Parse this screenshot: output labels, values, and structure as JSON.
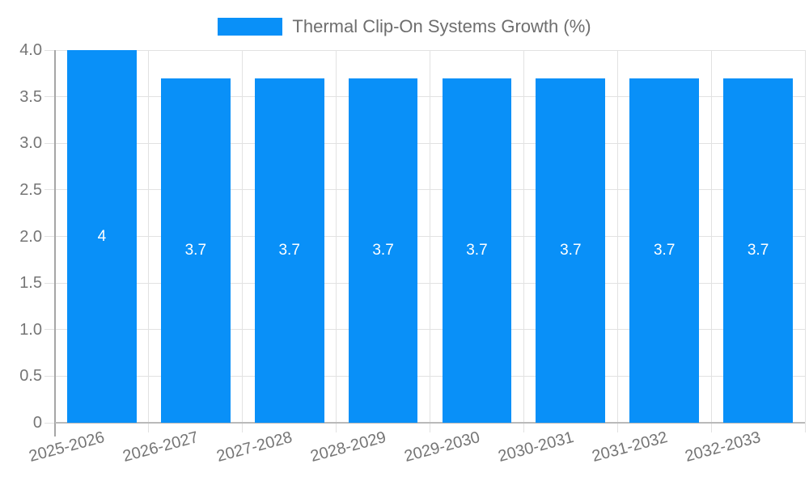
{
  "legend": {
    "label": "Thermal Clip-On Systems Growth (%)",
    "swatch_color": "#0990f8"
  },
  "chart_data": {
    "type": "bar",
    "title": "Thermal Clip-On Systems Growth (%)",
    "categories": [
      "2025-2026",
      "2026-2027",
      "2027-2028",
      "2028-2029",
      "2029-2030",
      "2030-2031",
      "2031-2032",
      "2032-2033"
    ],
    "values": [
      4,
      3.7,
      3.7,
      3.7,
      3.7,
      3.7,
      3.7,
      3.7
    ],
    "bar_labels": [
      "4",
      "3.7",
      "3.7",
      "3.7",
      "3.7",
      "3.7",
      "3.7",
      "3.7"
    ],
    "xlabel": "",
    "ylabel": "",
    "ylim": [
      0,
      4
    ],
    "yticks": [
      {
        "value": 0,
        "label": "0"
      },
      {
        "value": 0.5,
        "label": "0.5"
      },
      {
        "value": 1,
        "label": "1.0"
      },
      {
        "value": 1.5,
        "label": "1.5"
      },
      {
        "value": 2,
        "label": "2.0"
      },
      {
        "value": 2.5,
        "label": "2.5"
      },
      {
        "value": 3,
        "label": "3.0"
      },
      {
        "value": 3.5,
        "label": "3.5"
      },
      {
        "value": 4,
        "label": "4.0"
      }
    ],
    "grid": true,
    "legend_position": "top-center",
    "x_tick_rotation": -15,
    "colors": {
      "bar": "#0990f8",
      "bar_label": "#ffffff",
      "grid": "#e2e2e2",
      "y_axis_line": "#a6a6a6",
      "x_axis_line": "#b9b9b9",
      "tick_text": "#757575",
      "legend_text": "#6e6e6e"
    }
  }
}
